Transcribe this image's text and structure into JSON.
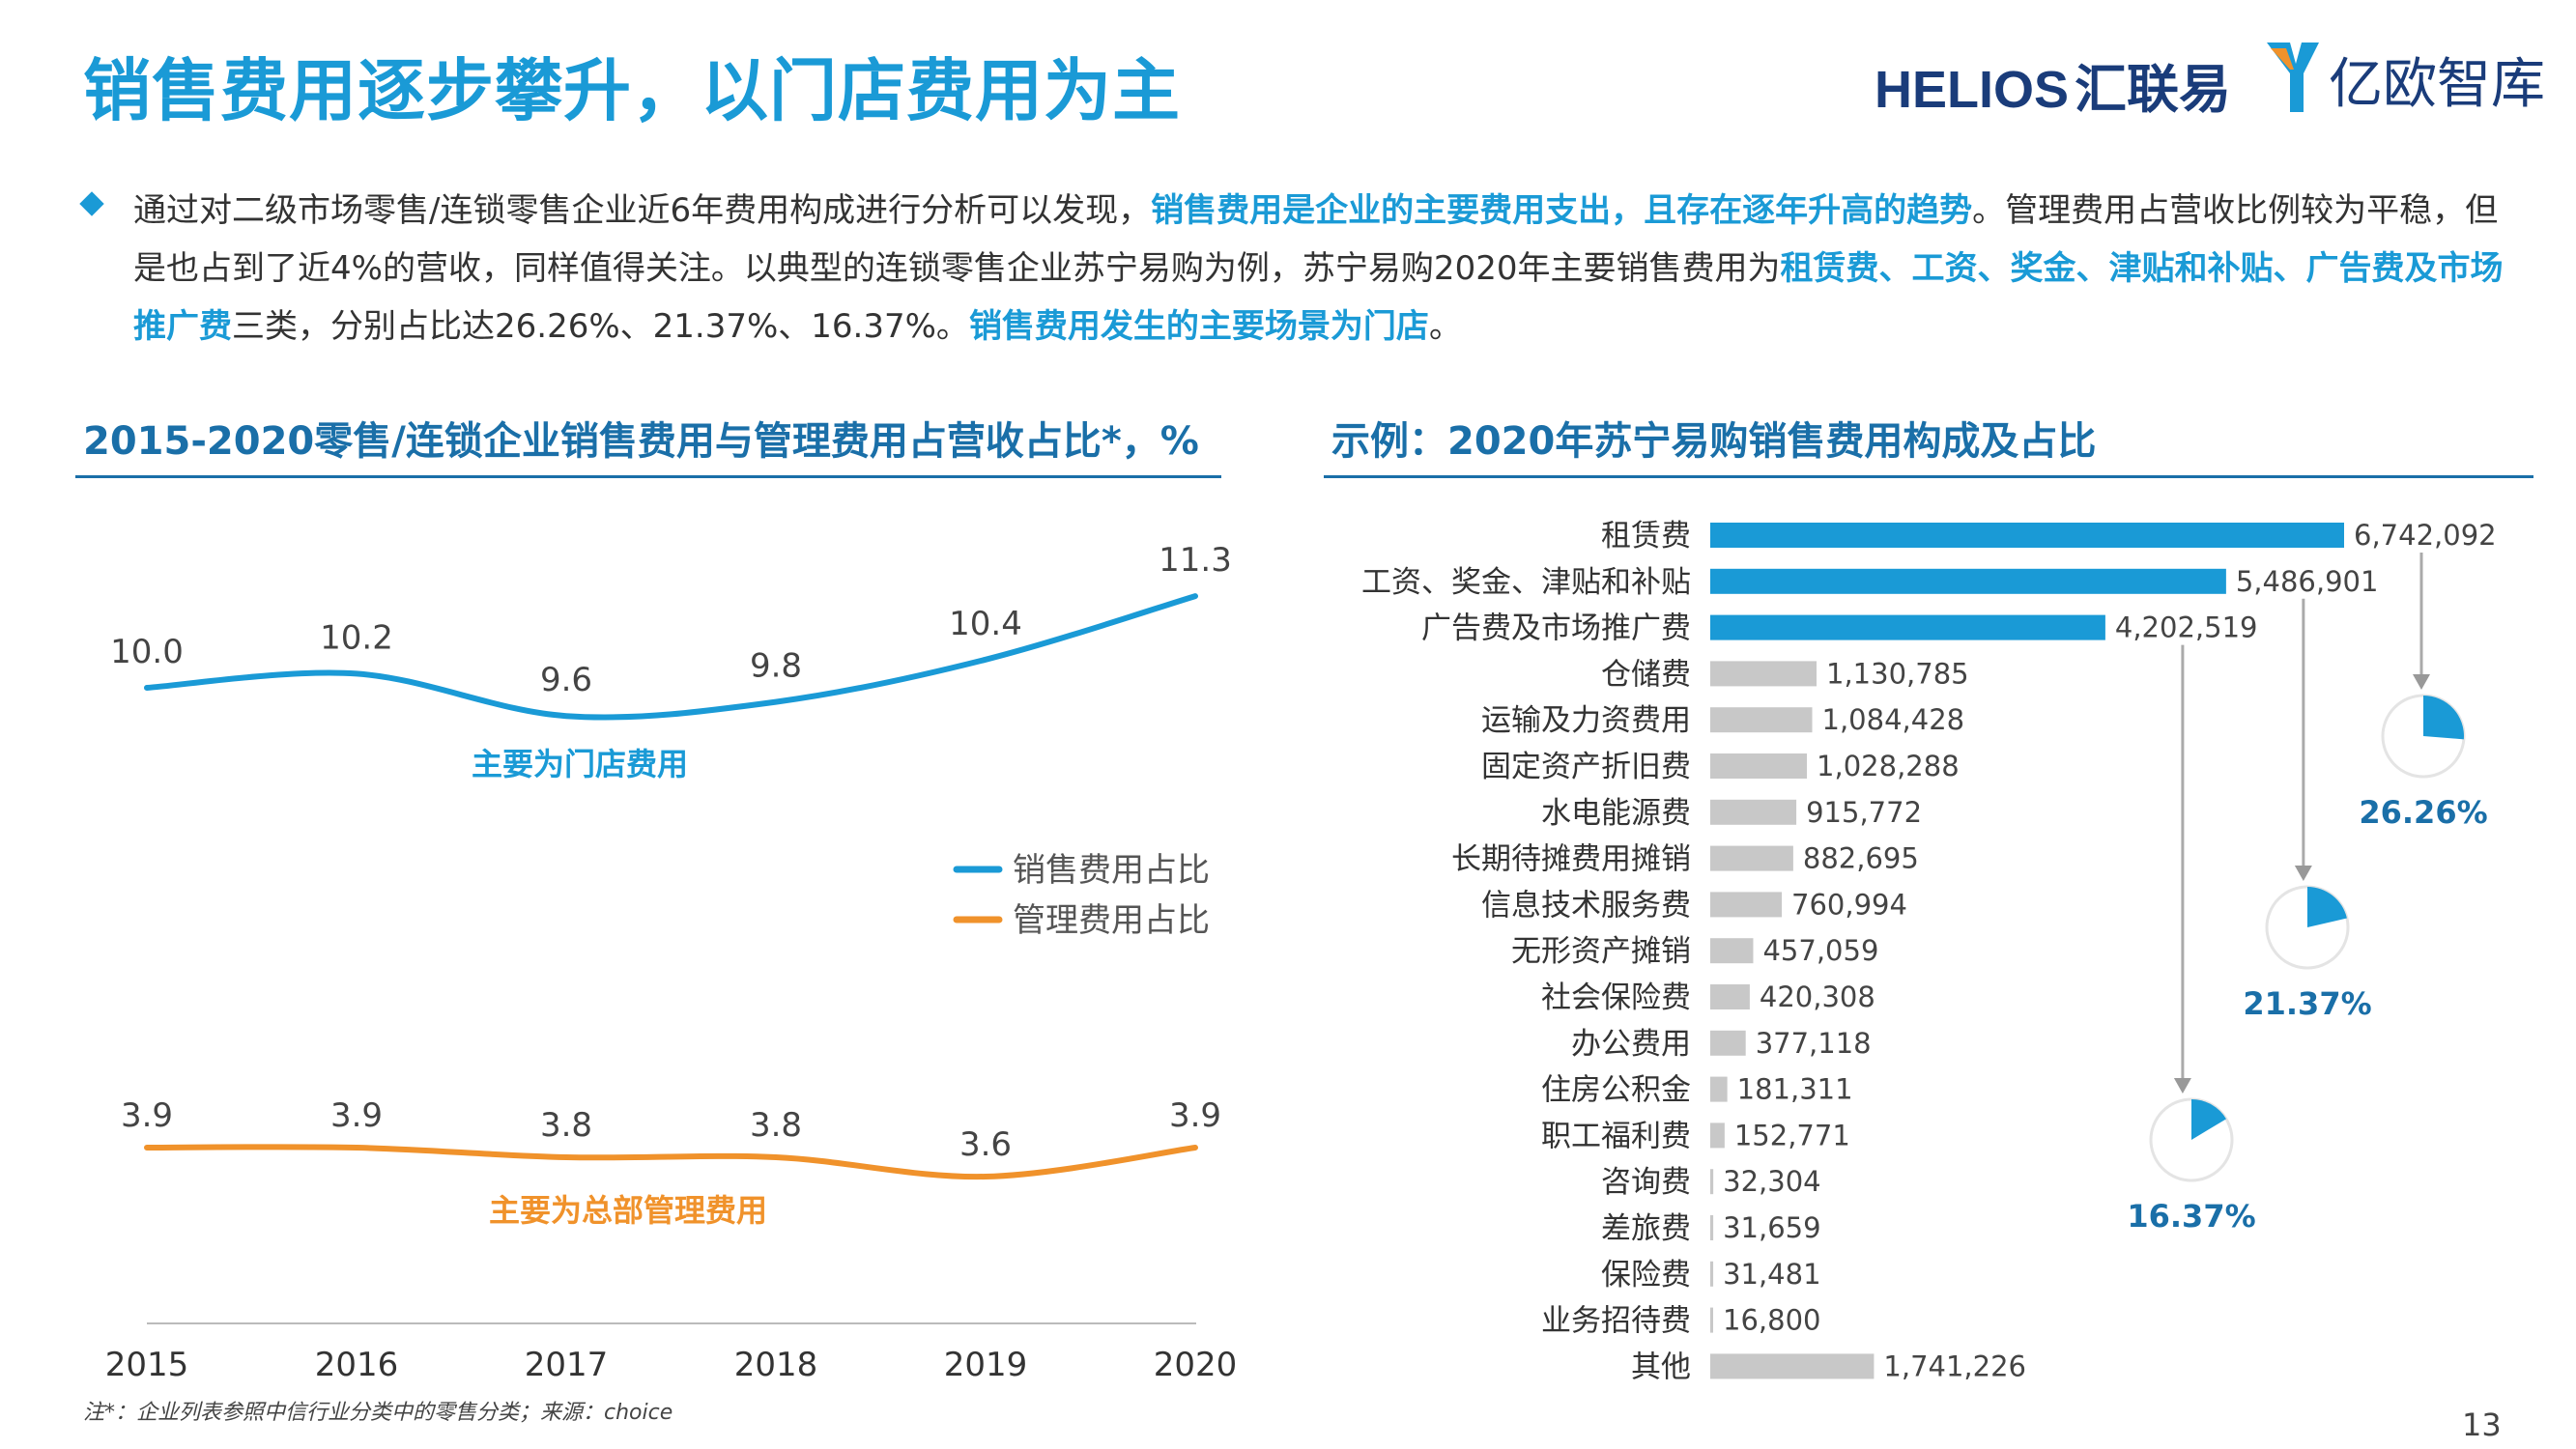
{
  "header": {
    "title": "销售费用逐步攀升，以门店费用为主",
    "logo_helios": "HELIOS",
    "logo_huilianyi": "汇联易",
    "logo_yiou": "亿欧智库"
  },
  "intro": {
    "s1": "通过对二级市场零售/连锁零售企业近6年费用构成进行分析可以发现，",
    "s2": "销售费用是企业的主要费用支出，且存在逐年升高的趋势",
    "s3": "。管理费用占营收比例较为平稳，但是也占到了近4%的营收，同样值得关注。以典型的连锁零售企业苏宁易购为例，苏宁易购2020年主要销售费用为",
    "s4": "租赁费、工资、奖金、津贴和补贴、广告费及市场推广费",
    "s5": "三类，分别占比达26.26%、21.37%、16.37%。",
    "s6": "销售费用发生的主要场景为门店",
    "s7": "。"
  },
  "left_section_title": "2015-2020零售/连锁企业销售费用与管理费用占营收占比*，%",
  "right_section_title": "示例：2020年苏宁易购销售费用构成及占比",
  "chart_data": [
    {
      "type": "line",
      "title": "2015-2020零售/连锁企业销售费用与管理费用占营收占比*，%",
      "categories": [
        "2015",
        "2016",
        "2017",
        "2018",
        "2019",
        "2020"
      ],
      "series": [
        {
          "name": "销售费用占比",
          "values": [
            10.0,
            10.2,
            9.6,
            9.8,
            10.4,
            11.3
          ],
          "color": "#1a9ad6",
          "labels": [
            "10.0",
            "10.2",
            "9.6",
            "9.8",
            "10.4",
            "11.3"
          ]
        },
        {
          "name": "管理费用占比",
          "values": [
            3.9,
            3.9,
            3.8,
            3.8,
            3.6,
            3.9
          ],
          "color": "#f0922b",
          "labels": [
            "3.9",
            "3.9",
            "3.8",
            "3.8",
            "3.6",
            "3.9"
          ]
        }
      ],
      "annotations": [
        "主要为门店费用",
        "主要为总部管理费用"
      ]
    },
    {
      "type": "bar",
      "orientation": "horizontal",
      "title": "示例：2020年苏宁易购销售费用构成及占比",
      "categories": [
        "租赁费",
        "工资、奖金、津贴和补贴",
        "广告费及市场推广费",
        "仓储费",
        "运输及力资费用",
        "固定资产折旧费",
        "水电能源费",
        "长期待摊费用摊销",
        "信息技术服务费",
        "无形资产摊销",
        "社会保险费",
        "办公费用",
        "住房公积金",
        "职工福利费",
        "咨询费",
        "差旅费",
        "保险费",
        "业务招待费",
        "其他"
      ],
      "values": [
        6742092,
        5486901,
        4202519,
        1130785,
        1084428,
        1028288,
        915772,
        882695,
        760994,
        457059,
        420308,
        377118,
        181311,
        152771,
        32304,
        31659,
        31481,
        16800,
        1741226
      ],
      "value_labels": [
        "6,742,092",
        "5,486,901",
        "4,202,519",
        "1,130,785",
        "1,084,428",
        "1,028,288",
        "915,772",
        "882,695",
        "760,994",
        "457,059",
        "420,308",
        "377,118",
        "181,311",
        "152,771",
        "32,304",
        "31,659",
        "31,481",
        "16,800",
        "1,741,226"
      ],
      "highlight_count": 3,
      "colors": {
        "highlight": "#1a9ad6",
        "other": "#c8c8c8"
      },
      "pies": [
        {
          "value": 26.26,
          "label": "26.26%"
        },
        {
          "value": 21.37,
          "label": "21.37%"
        },
        {
          "value": 16.37,
          "label": "16.37%"
        }
      ]
    }
  ],
  "footnote": "注*：企业列表参照中信行业分类中的零售分类；来源：choice",
  "page_number": "13"
}
